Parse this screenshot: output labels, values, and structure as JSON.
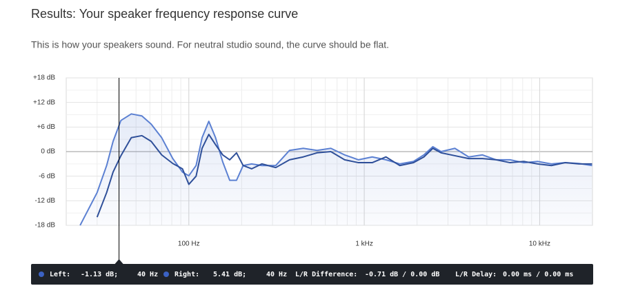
{
  "chart_data": {
    "type": "line",
    "title": "Results: Your speaker frequency response curve",
    "subtitle": "This is how your speakers sound. For neutral studio sound, the curve should be flat.",
    "log_x": true,
    "grid": true,
    "xlim": [
      20,
      20000
    ],
    "ylim": [
      -18,
      18
    ],
    "xticks": [
      {
        "value": 100,
        "label": "100 Hz"
      },
      {
        "value": 1000,
        "label": "1 kHz"
      },
      {
        "value": 10000,
        "label": "10 kHz"
      }
    ],
    "yticks": [
      {
        "value": 18,
        "label": "+18 dB"
      },
      {
        "value": 12,
        "label": "+12 dB"
      },
      {
        "value": 6,
        "label": "+6 dB"
      },
      {
        "value": 0,
        "label": "0 dB"
      },
      {
        "value": -6,
        "label": "-6 dB"
      },
      {
        "value": -12,
        "label": "-12 dB"
      },
      {
        "value": -18,
        "label": "-18 dB"
      }
    ],
    "x": [
      24,
      30,
      34,
      37,
      41,
      47,
      54,
      61,
      70,
      81,
      92,
      100,
      110,
      119,
      130,
      142,
      156,
      171,
      187,
      204,
      228,
      261,
      313,
      375,
      449,
      538,
      645,
      773,
      927,
      1110,
      1330,
      1593,
      1910,
      2188,
      2460,
      2742,
      3285,
      3940,
      4720,
      5650,
      6780,
      8120,
      9730,
      11660,
      13970,
      16740,
      19900
    ],
    "series": [
      {
        "name": "Right",
        "color": "#5b80d2",
        "fill": true,
        "values": [
          -18,
          -10,
          -3.4,
          2.5,
          7.6,
          9.2,
          8.7,
          6.7,
          3.4,
          -1.7,
          -5,
          -5.9,
          -3.4,
          3.4,
          7.4,
          3.4,
          -2.5,
          -7,
          -7,
          -3.4,
          -3,
          -3.4,
          -3.4,
          0.3,
          0.8,
          0.3,
          0.8,
          -0.8,
          -2,
          -1.3,
          -2,
          -3,
          -2.4,
          -0.8,
          1.2,
          0,
          0.8,
          -1.3,
          -0.8,
          -2,
          -2,
          -2.7,
          -2.4,
          -3,
          -2.7,
          -2.9,
          -3.4
        ]
      },
      {
        "name": "Left",
        "color": "#2e4f99",
        "fill": false,
        "values": [
          null,
          -16,
          -10,
          -5,
          -1,
          3.4,
          3.9,
          2.5,
          -0.8,
          -2.9,
          -4.2,
          -8,
          -6,
          0.8,
          4.2,
          1.7,
          -0.8,
          -2,
          -0.3,
          -3.4,
          -4.2,
          -3,
          -3.9,
          -2,
          -1.3,
          -0.3,
          0,
          -2,
          -2.7,
          -2.7,
          -1.3,
          -3.4,
          -2.7,
          -1.3,
          0.8,
          -0.3,
          -1,
          -1.7,
          -1.7,
          -2,
          -2.7,
          -2.4,
          -3,
          -3.4,
          -2.7,
          -3,
          -3
        ]
      }
    ],
    "cursor_x": 40,
    "readout": [
      {
        "label": "Left:",
        "value": "-1.13 dB;",
        "freq": "40 Hz"
      },
      {
        "label": "Right:",
        "value": "5.41 dB;",
        "freq": "40 Hz"
      }
    ],
    "difference": {
      "label": "L/R Difference:",
      "value": "-0.71 dB / 0.00 dB"
    },
    "delay": {
      "label": "L/R Delay:",
      "value": "0.00 ms / 0.00 ms"
    }
  }
}
